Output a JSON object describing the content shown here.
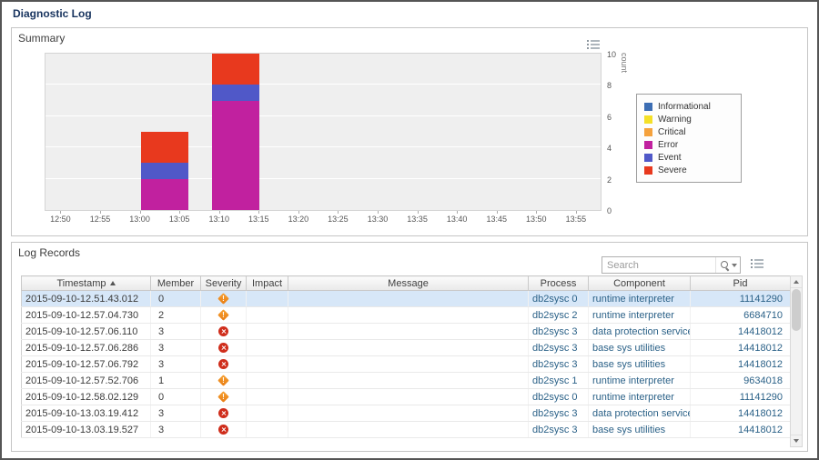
{
  "page": {
    "title": "Diagnostic Log"
  },
  "summary": {
    "title": "Summary"
  },
  "chart_data": {
    "type": "stacked-bar",
    "title": "Summary",
    "ylabel": "count",
    "ylim": [
      0,
      10
    ],
    "y_ticks": [
      0,
      2,
      4,
      6,
      8,
      10
    ],
    "axis_start": "12:48",
    "axis_end": "13:58",
    "x_ticks": [
      "12:50",
      "12:55",
      "13:00",
      "13:05",
      "13:10",
      "13:15",
      "13:20",
      "13:25",
      "13:30",
      "13:35",
      "13:40",
      "13:45",
      "13:50",
      "13:55"
    ],
    "bar_width_minutes": 6,
    "grid": true,
    "legend_position": "right",
    "legend": [
      {
        "label": "Informational",
        "color": "#3d6eb4"
      },
      {
        "label": "Warning",
        "color": "#f4e028"
      },
      {
        "label": "Critical",
        "color": "#f5a23d"
      },
      {
        "label": "Error",
        "color": "#c1219f"
      },
      {
        "label": "Event",
        "color": "#5058c8"
      },
      {
        "label": "Severe",
        "color": "#e8391e"
      }
    ],
    "bars": [
      {
        "x_center": "13:03",
        "segments": [
          {
            "name": "Error",
            "value": 2
          },
          {
            "name": "Event",
            "value": 1
          },
          {
            "name": "Severe",
            "value": 2
          }
        ]
      },
      {
        "x_center": "13:12",
        "segments": [
          {
            "name": "Error",
            "value": 7
          },
          {
            "name": "Event",
            "value": 1
          },
          {
            "name": "Severe",
            "value": 2
          }
        ]
      }
    ]
  },
  "log_records": {
    "title": "Log Records",
    "search_placeholder": "Search",
    "sort": {
      "column": "Timestamp",
      "direction": "asc"
    },
    "columns": [
      "Timestamp",
      "Member",
      "Severity",
      "Impact",
      "Message",
      "Process",
      "Component",
      "Pid"
    ],
    "rows": [
      {
        "timestamp": "2015-09-10-12.51.43.012",
        "member": "0",
        "severity": "warning",
        "impact": "",
        "message": "",
        "process": "db2sysc 0",
        "component": "runtime interpreter",
        "pid": "11141290",
        "selected": true
      },
      {
        "timestamp": "2015-09-10-12.57.04.730",
        "member": "2",
        "severity": "warning",
        "impact": "",
        "message": "",
        "process": "db2sysc 2",
        "component": "runtime interpreter",
        "pid": "6684710",
        "selected": false
      },
      {
        "timestamp": "2015-09-10-12.57.06.110",
        "member": "3",
        "severity": "error",
        "impact": "",
        "message": "",
        "process": "db2sysc 3",
        "component": "data protection services",
        "pid": "14418012",
        "selected": false
      },
      {
        "timestamp": "2015-09-10-12.57.06.286",
        "member": "3",
        "severity": "error",
        "impact": "",
        "message": "",
        "process": "db2sysc 3",
        "component": "base sys utilities",
        "pid": "14418012",
        "selected": false
      },
      {
        "timestamp": "2015-09-10-12.57.06.792",
        "member": "3",
        "severity": "error",
        "impact": "",
        "message": "",
        "process": "db2sysc 3",
        "component": "base sys utilities",
        "pid": "14418012",
        "selected": false
      },
      {
        "timestamp": "2015-09-10-12.57.52.706",
        "member": "1",
        "severity": "warning",
        "impact": "",
        "message": "",
        "process": "db2sysc 1",
        "component": "runtime interpreter",
        "pid": "9634018",
        "selected": false
      },
      {
        "timestamp": "2015-09-10-12.58.02.129",
        "member": "0",
        "severity": "warning",
        "impact": "",
        "message": "",
        "process": "db2sysc 0",
        "component": "runtime interpreter",
        "pid": "11141290",
        "selected": false
      },
      {
        "timestamp": "2015-09-10-13.03.19.412",
        "member": "3",
        "severity": "error",
        "impact": "",
        "message": "",
        "process": "db2sysc 3",
        "component": "data protection services",
        "pid": "14418012",
        "selected": false
      },
      {
        "timestamp": "2015-09-10-13.03.19.527",
        "member": "3",
        "severity": "error",
        "impact": "",
        "message": "",
        "process": "db2sysc 3",
        "component": "base sys utilities",
        "pid": "14418012",
        "selected": false
      }
    ]
  }
}
